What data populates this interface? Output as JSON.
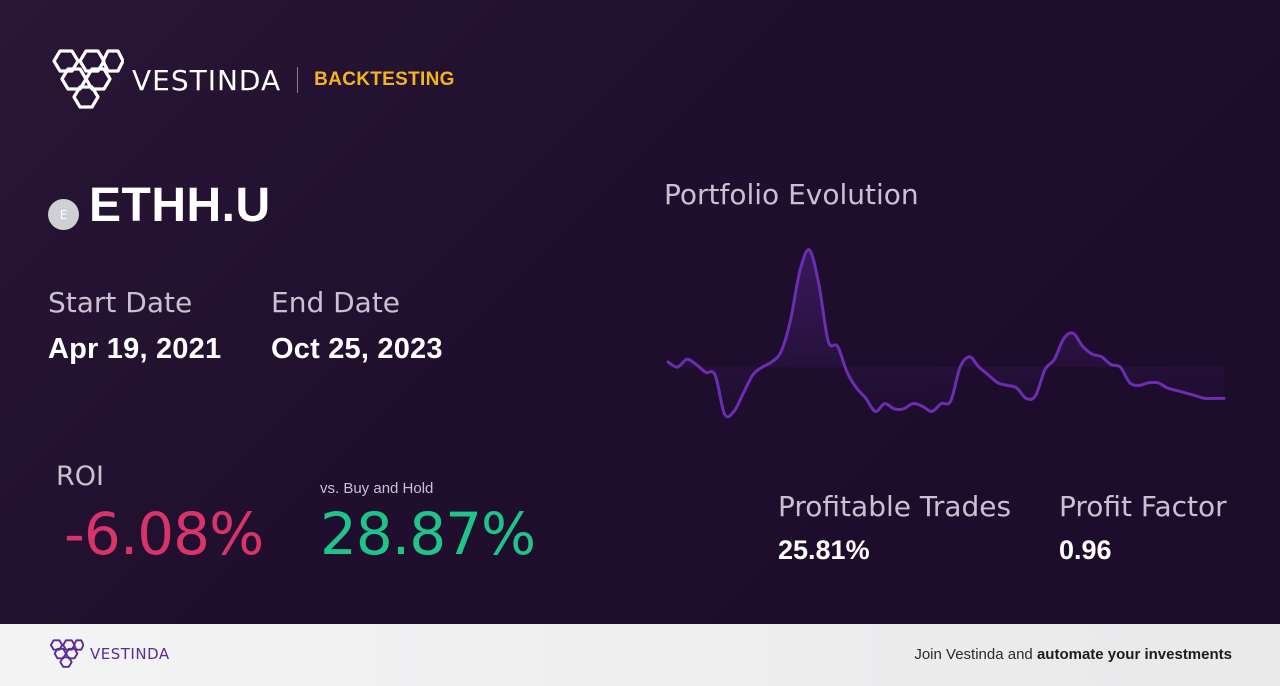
{
  "brand": {
    "name": "VESTINDA",
    "section": "BACKTESTING",
    "logo_icon": "hexagon-cluster-icon"
  },
  "ticker": {
    "badge": "E",
    "symbol": "ETHH.U"
  },
  "dates": {
    "start_label": "Start Date",
    "start_value": "Apr 19, 2021",
    "end_label": "End Date",
    "end_value": "Oct 25, 2023"
  },
  "roi": {
    "label": "ROI",
    "value": "-6.08%",
    "value_color": "#d8336b",
    "bh_label": "vs. Buy and Hold",
    "bh_value": "28.87%",
    "bh_color": "#1fc48a"
  },
  "chart_data": {
    "type": "line",
    "title": "Portfolio Evolution",
    "line_color": "#6a2fb0",
    "x": [
      0,
      1,
      2,
      3,
      4,
      5,
      6,
      7,
      8,
      9,
      10,
      11,
      12,
      13,
      14,
      15,
      16,
      17,
      18,
      19,
      20,
      21,
      22,
      23,
      24,
      25,
      26,
      27,
      28,
      29,
      30,
      31,
      32,
      33,
      34,
      35,
      36,
      37,
      38,
      39,
      40,
      41,
      42,
      43,
      44,
      45,
      46,
      47,
      48,
      49,
      50,
      51,
      52,
      53,
      54,
      55,
      56,
      57,
      58,
      59
    ],
    "values": [
      98,
      96,
      99,
      97,
      94,
      93,
      78,
      79,
      86,
      93,
      96,
      98,
      102,
      114,
      133,
      141,
      128,
      106,
      104,
      94,
      88,
      84,
      79,
      82,
      80,
      80,
      82,
      81,
      79,
      82,
      83,
      96,
      100,
      96,
      93,
      90,
      89,
      88,
      84,
      85,
      95,
      99,
      107,
      109,
      104,
      101,
      100,
      97,
      96,
      90,
      89,
      90,
      90,
      88,
      87,
      86,
      85,
      84,
      84,
      84
    ],
    "baseline": 96,
    "grid": false
  },
  "stats": {
    "profitable_label": "Profitable Trades",
    "profitable_value": "25.81%",
    "factor_label": "Profit Factor",
    "factor_value": "0.96"
  },
  "footer": {
    "brand_name": "VESTINDA",
    "cta_prefix": "Join Vestinda and ",
    "cta_bold": "automate your investments"
  }
}
